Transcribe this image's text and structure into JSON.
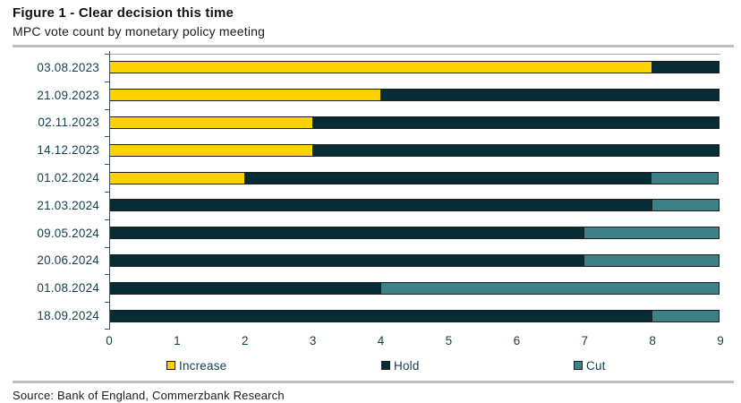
{
  "header": {
    "title": "Figure 1 - Clear decision this time",
    "subtitle": "MPC vote count by monetary policy meeting"
  },
  "source": "Source: Bank of England, Commerzbank Research",
  "colors": {
    "increase": "#fcd200",
    "hold": "#082c36",
    "cut": "#3e8087",
    "bar_border": "#1d1d1b",
    "axis_text": "#123f4e",
    "divider": "#bdbdbd"
  },
  "chart_data": {
    "type": "bar",
    "orientation": "horizontal",
    "stacked": true,
    "title": "Figure 1 - Clear decision this time",
    "subtitle": "MPC vote count by monetary policy meeting",
    "categories": [
      "03.08.2023",
      "21.09.2023",
      "02.11.2023",
      "14.12.2023",
      "01.02.2024",
      "21.03.2024",
      "09.05.2024",
      "20.06.2024",
      "01.08.2024",
      "18.09.2024"
    ],
    "series": [
      {
        "name": "Increase",
        "color": "#fcd200",
        "values": [
          8,
          4,
          3,
          3,
          2,
          0,
          0,
          0,
          0,
          0
        ]
      },
      {
        "name": "Hold",
        "color": "#082c36",
        "values": [
          1,
          5,
          6,
          6,
          6,
          8,
          7,
          7,
          4,
          8
        ]
      },
      {
        "name": "Cut",
        "color": "#3e8087",
        "values": [
          0,
          0,
          0,
          0,
          1,
          1,
          2,
          2,
          5,
          1
        ]
      }
    ],
    "xlim": [
      0,
      9
    ],
    "xticks": [
      0,
      1,
      2,
      3,
      4,
      5,
      6,
      7,
      8,
      9
    ],
    "legend_position": "bottom",
    "grid": false
  }
}
